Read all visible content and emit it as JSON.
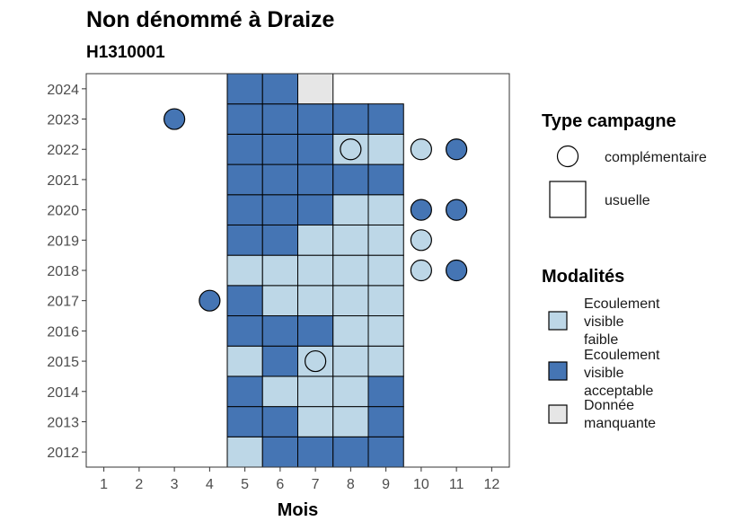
{
  "chart_data": {
    "type": "heatmap",
    "title": "Non dénommé à Draize",
    "subtitle": "H1310001",
    "xlabel": "Mois",
    "ylabel": "",
    "x_ticks": [
      "1",
      "2",
      "3",
      "4",
      "5",
      "6",
      "7",
      "8",
      "9",
      "10",
      "11",
      "12"
    ],
    "y_ticks": [
      "2012",
      "2013",
      "2014",
      "2015",
      "2016",
      "2017",
      "2018",
      "2019",
      "2020",
      "2021",
      "2022",
      "2023",
      "2024"
    ],
    "xlim": [
      0.5,
      12.5
    ],
    "ylim": [
      2011.5,
      2024.5
    ],
    "colors": {
      "Ecoulement visible faible": "#bdd7e7",
      "Ecoulement visible acceptable": "#4575b4",
      "Donnée manquante": "#e6e6e6"
    },
    "cells": [
      {
        "year": 2012,
        "month": 5,
        "modalite": "Ecoulement visible faible"
      },
      {
        "year": 2012,
        "month": 6,
        "modalite": "Ecoulement visible acceptable"
      },
      {
        "year": 2012,
        "month": 7,
        "modalite": "Ecoulement visible acceptable"
      },
      {
        "year": 2012,
        "month": 8,
        "modalite": "Ecoulement visible acceptable"
      },
      {
        "year": 2012,
        "month": 9,
        "modalite": "Ecoulement visible acceptable"
      },
      {
        "year": 2013,
        "month": 5,
        "modalite": "Ecoulement visible acceptable"
      },
      {
        "year": 2013,
        "month": 6,
        "modalite": "Ecoulement visible acceptable"
      },
      {
        "year": 2013,
        "month": 7,
        "modalite": "Ecoulement visible faible"
      },
      {
        "year": 2013,
        "month": 8,
        "modalite": "Ecoulement visible faible"
      },
      {
        "year": 2013,
        "month": 9,
        "modalite": "Ecoulement visible acceptable"
      },
      {
        "year": 2014,
        "month": 5,
        "modalite": "Ecoulement visible acceptable"
      },
      {
        "year": 2014,
        "month": 6,
        "modalite": "Ecoulement visible faible"
      },
      {
        "year": 2014,
        "month": 7,
        "modalite": "Ecoulement visible faible"
      },
      {
        "year": 2014,
        "month": 8,
        "modalite": "Ecoulement visible faible"
      },
      {
        "year": 2014,
        "month": 9,
        "modalite": "Ecoulement visible acceptable"
      },
      {
        "year": 2015,
        "month": 5,
        "modalite": "Ecoulement visible faible"
      },
      {
        "year": 2015,
        "month": 6,
        "modalite": "Ecoulement visible acceptable"
      },
      {
        "year": 2015,
        "month": 7,
        "modalite": "Ecoulement visible faible"
      },
      {
        "year": 2015,
        "month": 8,
        "modalite": "Ecoulement visible faible"
      },
      {
        "year": 2015,
        "month": 9,
        "modalite": "Ecoulement visible faible"
      },
      {
        "year": 2016,
        "month": 5,
        "modalite": "Ecoulement visible acceptable"
      },
      {
        "year": 2016,
        "month": 6,
        "modalite": "Ecoulement visible acceptable"
      },
      {
        "year": 2016,
        "month": 7,
        "modalite": "Ecoulement visible acceptable"
      },
      {
        "year": 2016,
        "month": 8,
        "modalite": "Ecoulement visible faible"
      },
      {
        "year": 2016,
        "month": 9,
        "modalite": "Ecoulement visible faible"
      },
      {
        "year": 2017,
        "month": 5,
        "modalite": "Ecoulement visible acceptable"
      },
      {
        "year": 2017,
        "month": 6,
        "modalite": "Ecoulement visible faible"
      },
      {
        "year": 2017,
        "month": 7,
        "modalite": "Ecoulement visible faible"
      },
      {
        "year": 2017,
        "month": 8,
        "modalite": "Ecoulement visible faible"
      },
      {
        "year": 2017,
        "month": 9,
        "modalite": "Ecoulement visible faible"
      },
      {
        "year": 2018,
        "month": 5,
        "modalite": "Ecoulement visible faible"
      },
      {
        "year": 2018,
        "month": 6,
        "modalite": "Ecoulement visible faible"
      },
      {
        "year": 2018,
        "month": 7,
        "modalite": "Ecoulement visible faible"
      },
      {
        "year": 2018,
        "month": 8,
        "modalite": "Ecoulement visible faible"
      },
      {
        "year": 2018,
        "month": 9,
        "modalite": "Ecoulement visible faible"
      },
      {
        "year": 2019,
        "month": 5,
        "modalite": "Ecoulement visible acceptable"
      },
      {
        "year": 2019,
        "month": 6,
        "modalite": "Ecoulement visible acceptable"
      },
      {
        "year": 2019,
        "month": 7,
        "modalite": "Ecoulement visible faible"
      },
      {
        "year": 2019,
        "month": 8,
        "modalite": "Ecoulement visible faible"
      },
      {
        "year": 2019,
        "month": 9,
        "modalite": "Ecoulement visible faible"
      },
      {
        "year": 2020,
        "month": 5,
        "modalite": "Ecoulement visible acceptable"
      },
      {
        "year": 2020,
        "month": 6,
        "modalite": "Ecoulement visible acceptable"
      },
      {
        "year": 2020,
        "month": 7,
        "modalite": "Ecoulement visible acceptable"
      },
      {
        "year": 2020,
        "month": 8,
        "modalite": "Ecoulement visible faible"
      },
      {
        "year": 2020,
        "month": 9,
        "modalite": "Ecoulement visible faible"
      },
      {
        "year": 2021,
        "month": 5,
        "modalite": "Ecoulement visible acceptable"
      },
      {
        "year": 2021,
        "month": 6,
        "modalite": "Ecoulement visible acceptable"
      },
      {
        "year": 2021,
        "month": 7,
        "modalite": "Ecoulement visible acceptable"
      },
      {
        "year": 2021,
        "month": 8,
        "modalite": "Ecoulement visible acceptable"
      },
      {
        "year": 2021,
        "month": 9,
        "modalite": "Ecoulement visible acceptable"
      },
      {
        "year": 2022,
        "month": 5,
        "modalite": "Ecoulement visible acceptable"
      },
      {
        "year": 2022,
        "month": 6,
        "modalite": "Ecoulement visible acceptable"
      },
      {
        "year": 2022,
        "month": 7,
        "modalite": "Ecoulement visible acceptable"
      },
      {
        "year": 2022,
        "month": 8,
        "modalite": "Ecoulement visible faible"
      },
      {
        "year": 2022,
        "month": 9,
        "modalite": "Ecoulement visible faible"
      },
      {
        "year": 2023,
        "month": 5,
        "modalite": "Ecoulement visible acceptable"
      },
      {
        "year": 2023,
        "month": 6,
        "modalite": "Ecoulement visible acceptable"
      },
      {
        "year": 2023,
        "month": 7,
        "modalite": "Ecoulement visible acceptable"
      },
      {
        "year": 2023,
        "month": 8,
        "modalite": "Ecoulement visible acceptable"
      },
      {
        "year": 2023,
        "month": 9,
        "modalite": "Ecoulement visible acceptable"
      },
      {
        "year": 2024,
        "month": 5,
        "modalite": "Ecoulement visible acceptable"
      },
      {
        "year": 2024,
        "month": 6,
        "modalite": "Ecoulement visible acceptable"
      },
      {
        "year": 2024,
        "month": 7,
        "modalite": "Donnée manquante"
      }
    ],
    "points": [
      {
        "year": 2023,
        "month": 3,
        "modalite": "Ecoulement visible acceptable"
      },
      {
        "year": 2022,
        "month": 8,
        "modalite": "Ecoulement visible faible"
      },
      {
        "year": 2022,
        "month": 10,
        "modalite": "Ecoulement visible faible"
      },
      {
        "year": 2022,
        "month": 11,
        "modalite": "Ecoulement visible acceptable"
      },
      {
        "year": 2020,
        "month": 10,
        "modalite": "Ecoulement visible acceptable"
      },
      {
        "year": 2020,
        "month": 11,
        "modalite": "Ecoulement visible acceptable"
      },
      {
        "year": 2019,
        "month": 10,
        "modalite": "Ecoulement visible faible"
      },
      {
        "year": 2018,
        "month": 10,
        "modalite": "Ecoulement visible faible"
      },
      {
        "year": 2018,
        "month": 11,
        "modalite": "Ecoulement visible acceptable"
      },
      {
        "year": 2017,
        "month": 4,
        "modalite": "Ecoulement visible acceptable"
      },
      {
        "year": 2015,
        "month": 7,
        "modalite": "Ecoulement visible faible"
      }
    ],
    "legend": {
      "placement": "right",
      "type_title": "Type campagne",
      "type_items": [
        {
          "label": "complémentaire",
          "shape": "circle"
        },
        {
          "label": "usuelle",
          "shape": "square"
        }
      ],
      "modalites_title": "Modalités",
      "modalites_items": [
        {
          "lines": [
            "Ecoulement",
            "visible",
            "faible"
          ],
          "key": "Ecoulement visible faible"
        },
        {
          "lines": [
            "Ecoulement",
            "visible",
            "acceptable"
          ],
          "key": "Ecoulement visible acceptable"
        },
        {
          "lines": [
            "Donnée",
            "manquante"
          ],
          "key": "Donnée manquante"
        }
      ]
    }
  }
}
